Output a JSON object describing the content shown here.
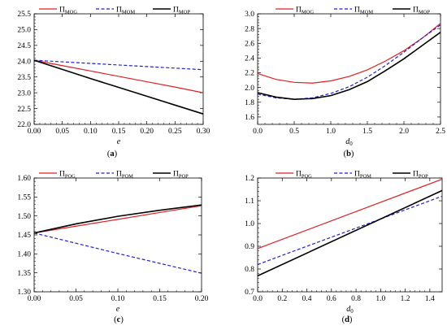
{
  "colors": {
    "red": "#e02020",
    "blue": "#1f1fd6",
    "black": "#000000"
  },
  "chart_data": [
    {
      "type": "line",
      "panel": "a",
      "caption": "(a)",
      "xlabel": "e",
      "xlim": [
        0,
        0.3
      ],
      "ylim": [
        22.0,
        25.5
      ],
      "xticks": [
        "0.00",
        "0.05",
        "0.10",
        "0.15",
        "0.20",
        "0.25",
        "0.30"
      ],
      "yticks": [
        "22.0",
        "22.5",
        "23.0",
        "23.5",
        "24.0",
        "24.5",
        "25.0",
        "25.5"
      ],
      "xtick_values": [
        0,
        0.05,
        0.1,
        0.15,
        0.2,
        0.25,
        0.3
      ],
      "ytick_values": [
        22.0,
        22.5,
        23.0,
        23.5,
        24.0,
        24.5,
        25.0,
        25.5
      ],
      "legend_placement": "top",
      "series": [
        {
          "name": "Π",
          "sub": "MOG",
          "color": "red",
          "dash": false,
          "x": [
            0,
            0.05,
            0.1,
            0.15,
            0.2,
            0.25,
            0.3
          ],
          "y": [
            24.03,
            23.86,
            23.69,
            23.52,
            23.35,
            23.18,
            23.0
          ]
        },
        {
          "name": "Π",
          "sub": "MOM",
          "color": "blue",
          "dash": true,
          "x": [
            0,
            0.05,
            0.1,
            0.15,
            0.2,
            0.25,
            0.3
          ],
          "y": [
            24.03,
            23.98,
            23.93,
            23.88,
            23.83,
            23.78,
            23.73
          ]
        },
        {
          "name": "Π",
          "sub": "MOP",
          "color": "black",
          "dash": false,
          "x": [
            0,
            0.05,
            0.1,
            0.15,
            0.2,
            0.25,
            0.3
          ],
          "y": [
            24.03,
            23.74,
            23.45,
            23.17,
            22.89,
            22.61,
            22.33
          ]
        }
      ]
    },
    {
      "type": "line",
      "panel": "b",
      "caption": "(b)",
      "xlabel": "d",
      "xlabel_sub": "0",
      "xlim": [
        0,
        2.5
      ],
      "ylim": [
        1.5,
        3.0
      ],
      "xticks": [
        "0.0",
        "0.5",
        "1.0",
        "1.5",
        "2.0",
        "2.5"
      ],
      "yticks": [
        "1.6",
        "1.8",
        "2.0",
        "2.2",
        "2.4",
        "2.6",
        "2.8",
        "3.0"
      ],
      "xtick_values": [
        0,
        0.5,
        1.0,
        1.5,
        2.0,
        2.5
      ],
      "ytick_values": [
        1.6,
        1.8,
        2.0,
        2.2,
        2.4,
        2.6,
        2.8,
        3.0
      ],
      "legend_placement": "top",
      "series": [
        {
          "name": "Π",
          "sub": "MOG",
          "color": "red",
          "dash": false,
          "x": [
            0,
            0.25,
            0.5,
            0.75,
            1.0,
            1.25,
            1.5,
            1.75,
            2.0,
            2.25,
            2.5
          ],
          "y": [
            2.19,
            2.11,
            2.07,
            2.06,
            2.09,
            2.15,
            2.24,
            2.36,
            2.5,
            2.67,
            2.87
          ]
        },
        {
          "name": "Π",
          "sub": "MOM",
          "color": "blue",
          "dash": true,
          "x": [
            0,
            0.25,
            0.5,
            0.75,
            1.0,
            1.25,
            1.5,
            1.75,
            2.0,
            2.25,
            2.5
          ],
          "y": [
            1.91,
            1.86,
            1.84,
            1.86,
            1.92,
            2.01,
            2.14,
            2.3,
            2.48,
            2.67,
            2.85
          ]
        },
        {
          "name": "Π",
          "sub": "MOP",
          "color": "black",
          "dash": false,
          "x": [
            0,
            0.25,
            0.5,
            0.75,
            1.0,
            1.25,
            1.5,
            1.75,
            2.0,
            2.25,
            2.5
          ],
          "y": [
            1.93,
            1.87,
            1.84,
            1.85,
            1.89,
            1.97,
            2.08,
            2.23,
            2.39,
            2.57,
            2.75
          ]
        }
      ]
    },
    {
      "type": "line",
      "panel": "c",
      "caption": "(c)",
      "xlabel": "e",
      "xlim": [
        0,
        0.2
      ],
      "ylim": [
        1.3,
        1.6
      ],
      "xticks": [
        "0.00",
        "0.05",
        "0.10",
        "0.15",
        "0.20"
      ],
      "yticks": [
        "1.30",
        "1.35",
        "1.40",
        "1.45",
        "1.50",
        "1.55",
        "1.60"
      ],
      "xtick_values": [
        0,
        0.05,
        0.1,
        0.15,
        0.2
      ],
      "ytick_values": [
        1.3,
        1.35,
        1.4,
        1.45,
        1.5,
        1.55,
        1.6
      ],
      "legend_placement": "top",
      "series": [
        {
          "name": "Π",
          "sub": "POG",
          "color": "red",
          "dash": false,
          "x": [
            0,
            0.05,
            0.1,
            0.15,
            0.2
          ],
          "y": [
            1.455,
            1.473,
            1.491,
            1.509,
            1.527
          ]
        },
        {
          "name": "Π",
          "sub": "POM",
          "color": "blue",
          "dash": true,
          "x": [
            0,
            0.05,
            0.1,
            0.15,
            0.2
          ],
          "y": [
            1.455,
            1.428,
            1.401,
            1.375,
            1.349
          ]
        },
        {
          "name": "Π",
          "sub": "POP",
          "color": "black",
          "dash": false,
          "x": [
            0,
            0.05,
            0.1,
            0.15,
            0.2
          ],
          "y": [
            1.455,
            1.479,
            1.499,
            1.515,
            1.529
          ]
        }
      ]
    },
    {
      "type": "line",
      "panel": "d",
      "caption": "(d)",
      "xlabel": "d",
      "xlabel_sub": "0",
      "xlim": [
        0,
        1.5
      ],
      "ylim": [
        0.7,
        1.2
      ],
      "xticks": [
        "0.0",
        "0.2",
        "0.4",
        "0.6",
        "0.8",
        "1.0",
        "1.2",
        "1.4"
      ],
      "yticks": [
        "0.7",
        "0.8",
        "0.9",
        "1.0",
        "1.1",
        "1.2"
      ],
      "xtick_values": [
        0,
        0.2,
        0.4,
        0.6,
        0.8,
        1.0,
        1.2,
        1.4
      ],
      "ytick_values": [
        0.7,
        0.8,
        0.9,
        1.0,
        1.1,
        1.2
      ],
      "legend_placement": "top",
      "series": [
        {
          "name": "Π",
          "sub": "POG",
          "color": "red",
          "dash": false,
          "x": [
            0,
            1.5
          ],
          "y": [
            0.89,
            1.195
          ]
        },
        {
          "name": "Π",
          "sub": "POM",
          "color": "blue",
          "dash": true,
          "x": [
            0,
            1.5
          ],
          "y": [
            0.82,
            1.12
          ]
        },
        {
          "name": "Π",
          "sub": "POP",
          "color": "black",
          "dash": false,
          "x": [
            0,
            1.5
          ],
          "y": [
            0.77,
            1.145
          ]
        }
      ]
    }
  ]
}
